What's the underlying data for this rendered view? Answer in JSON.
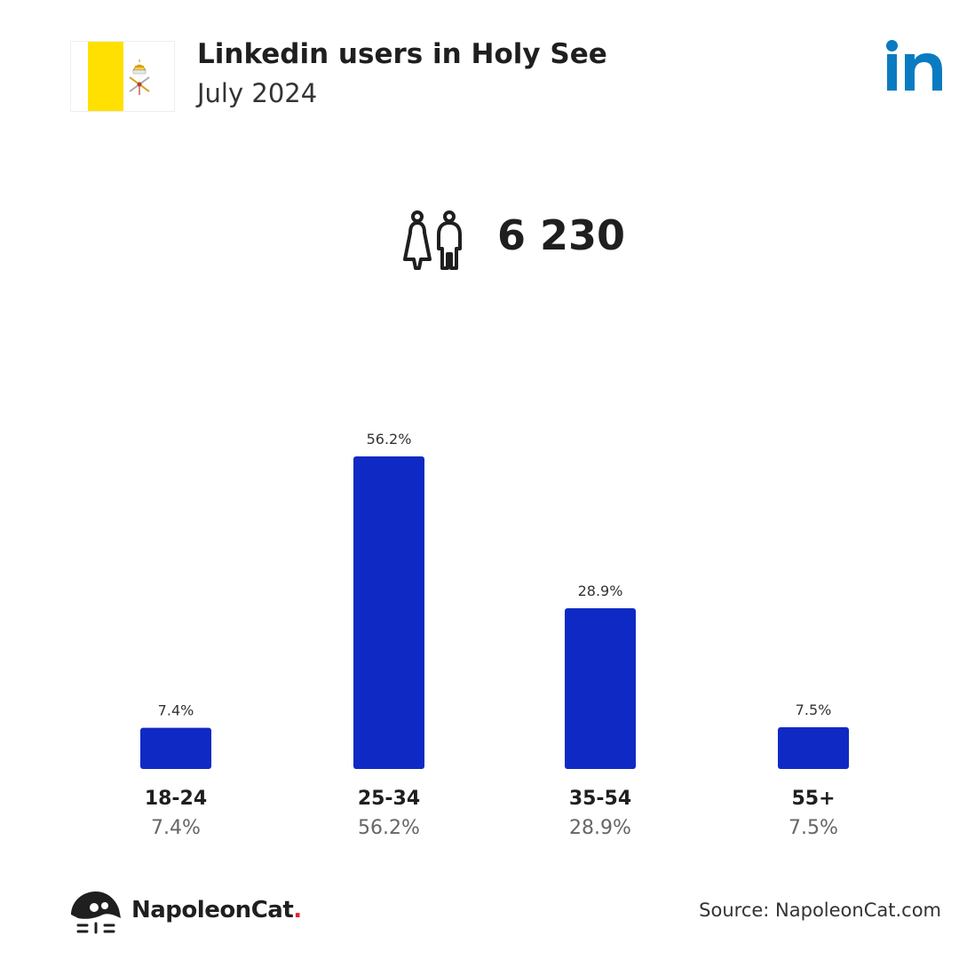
{
  "header": {
    "title": "Linkedin users in Holy See",
    "subtitle": "July 2024",
    "platform_icon": "linkedin-logo-icon",
    "flag_icon": "holy-see-flag-icon"
  },
  "summary": {
    "total_users": "6 230",
    "icon": "users-icon"
  },
  "chart_data": {
    "type": "bar",
    "categories": [
      "18-24",
      "25-34",
      "35-54",
      "55+"
    ],
    "values": [
      7.4,
      56.2,
      28.9,
      7.5
    ],
    "value_labels": [
      "7.4%",
      "56.2%",
      "28.9%",
      "7.5%"
    ],
    "title": "",
    "xlabel": "",
    "ylabel": "",
    "ylim": [
      0,
      56.2
    ],
    "grid": false,
    "bar_color": "#0f2ac4"
  },
  "footer": {
    "brand": "NapoleonCat",
    "brand_dot": ".",
    "source": "Source: NapoleonCat.com"
  },
  "colors": {
    "accent": "#0f2ac4",
    "linkedin": "#0a7bc1",
    "flag_yellow": "#ffe000",
    "brand_dot": "#e5202e"
  }
}
